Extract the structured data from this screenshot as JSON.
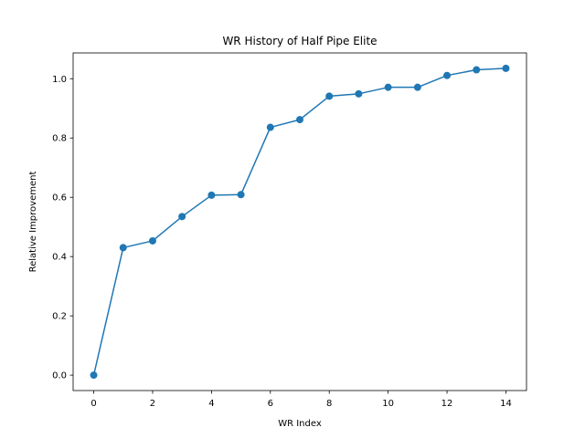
{
  "chart_data": {
    "type": "line",
    "title": "WR History of Half Pipe Elite",
    "xlabel": "WR Index",
    "ylabel": "Relative Improvement",
    "x": [
      0,
      1,
      2,
      3,
      4,
      5,
      6,
      7,
      8,
      9,
      10,
      11,
      12,
      13,
      14
    ],
    "series": [
      {
        "values": [
          0.0,
          0.43,
          0.453,
          0.535,
          0.607,
          0.609,
          0.836,
          0.862,
          0.941,
          0.949,
          0.971,
          0.971,
          1.011,
          1.03,
          1.035
        ],
        "color": "#1f77b4",
        "marker": "circle"
      }
    ],
    "xlim": [
      -0.7,
      14.7
    ],
    "ylim": [
      -0.052,
      1.087
    ],
    "xticks": [
      0,
      2,
      4,
      6,
      8,
      10,
      12,
      14
    ],
    "xtick_labels": [
      "0",
      "2",
      "4",
      "6",
      "8",
      "10",
      "12",
      "14"
    ],
    "yticks": [
      0.0,
      0.2,
      0.4,
      0.6,
      0.8,
      1.0
    ],
    "ytick_labels": [
      "0.0",
      "0.2",
      "0.4",
      "0.6",
      "0.8",
      "1.0"
    ],
    "grid": false,
    "legend": "none"
  }
}
